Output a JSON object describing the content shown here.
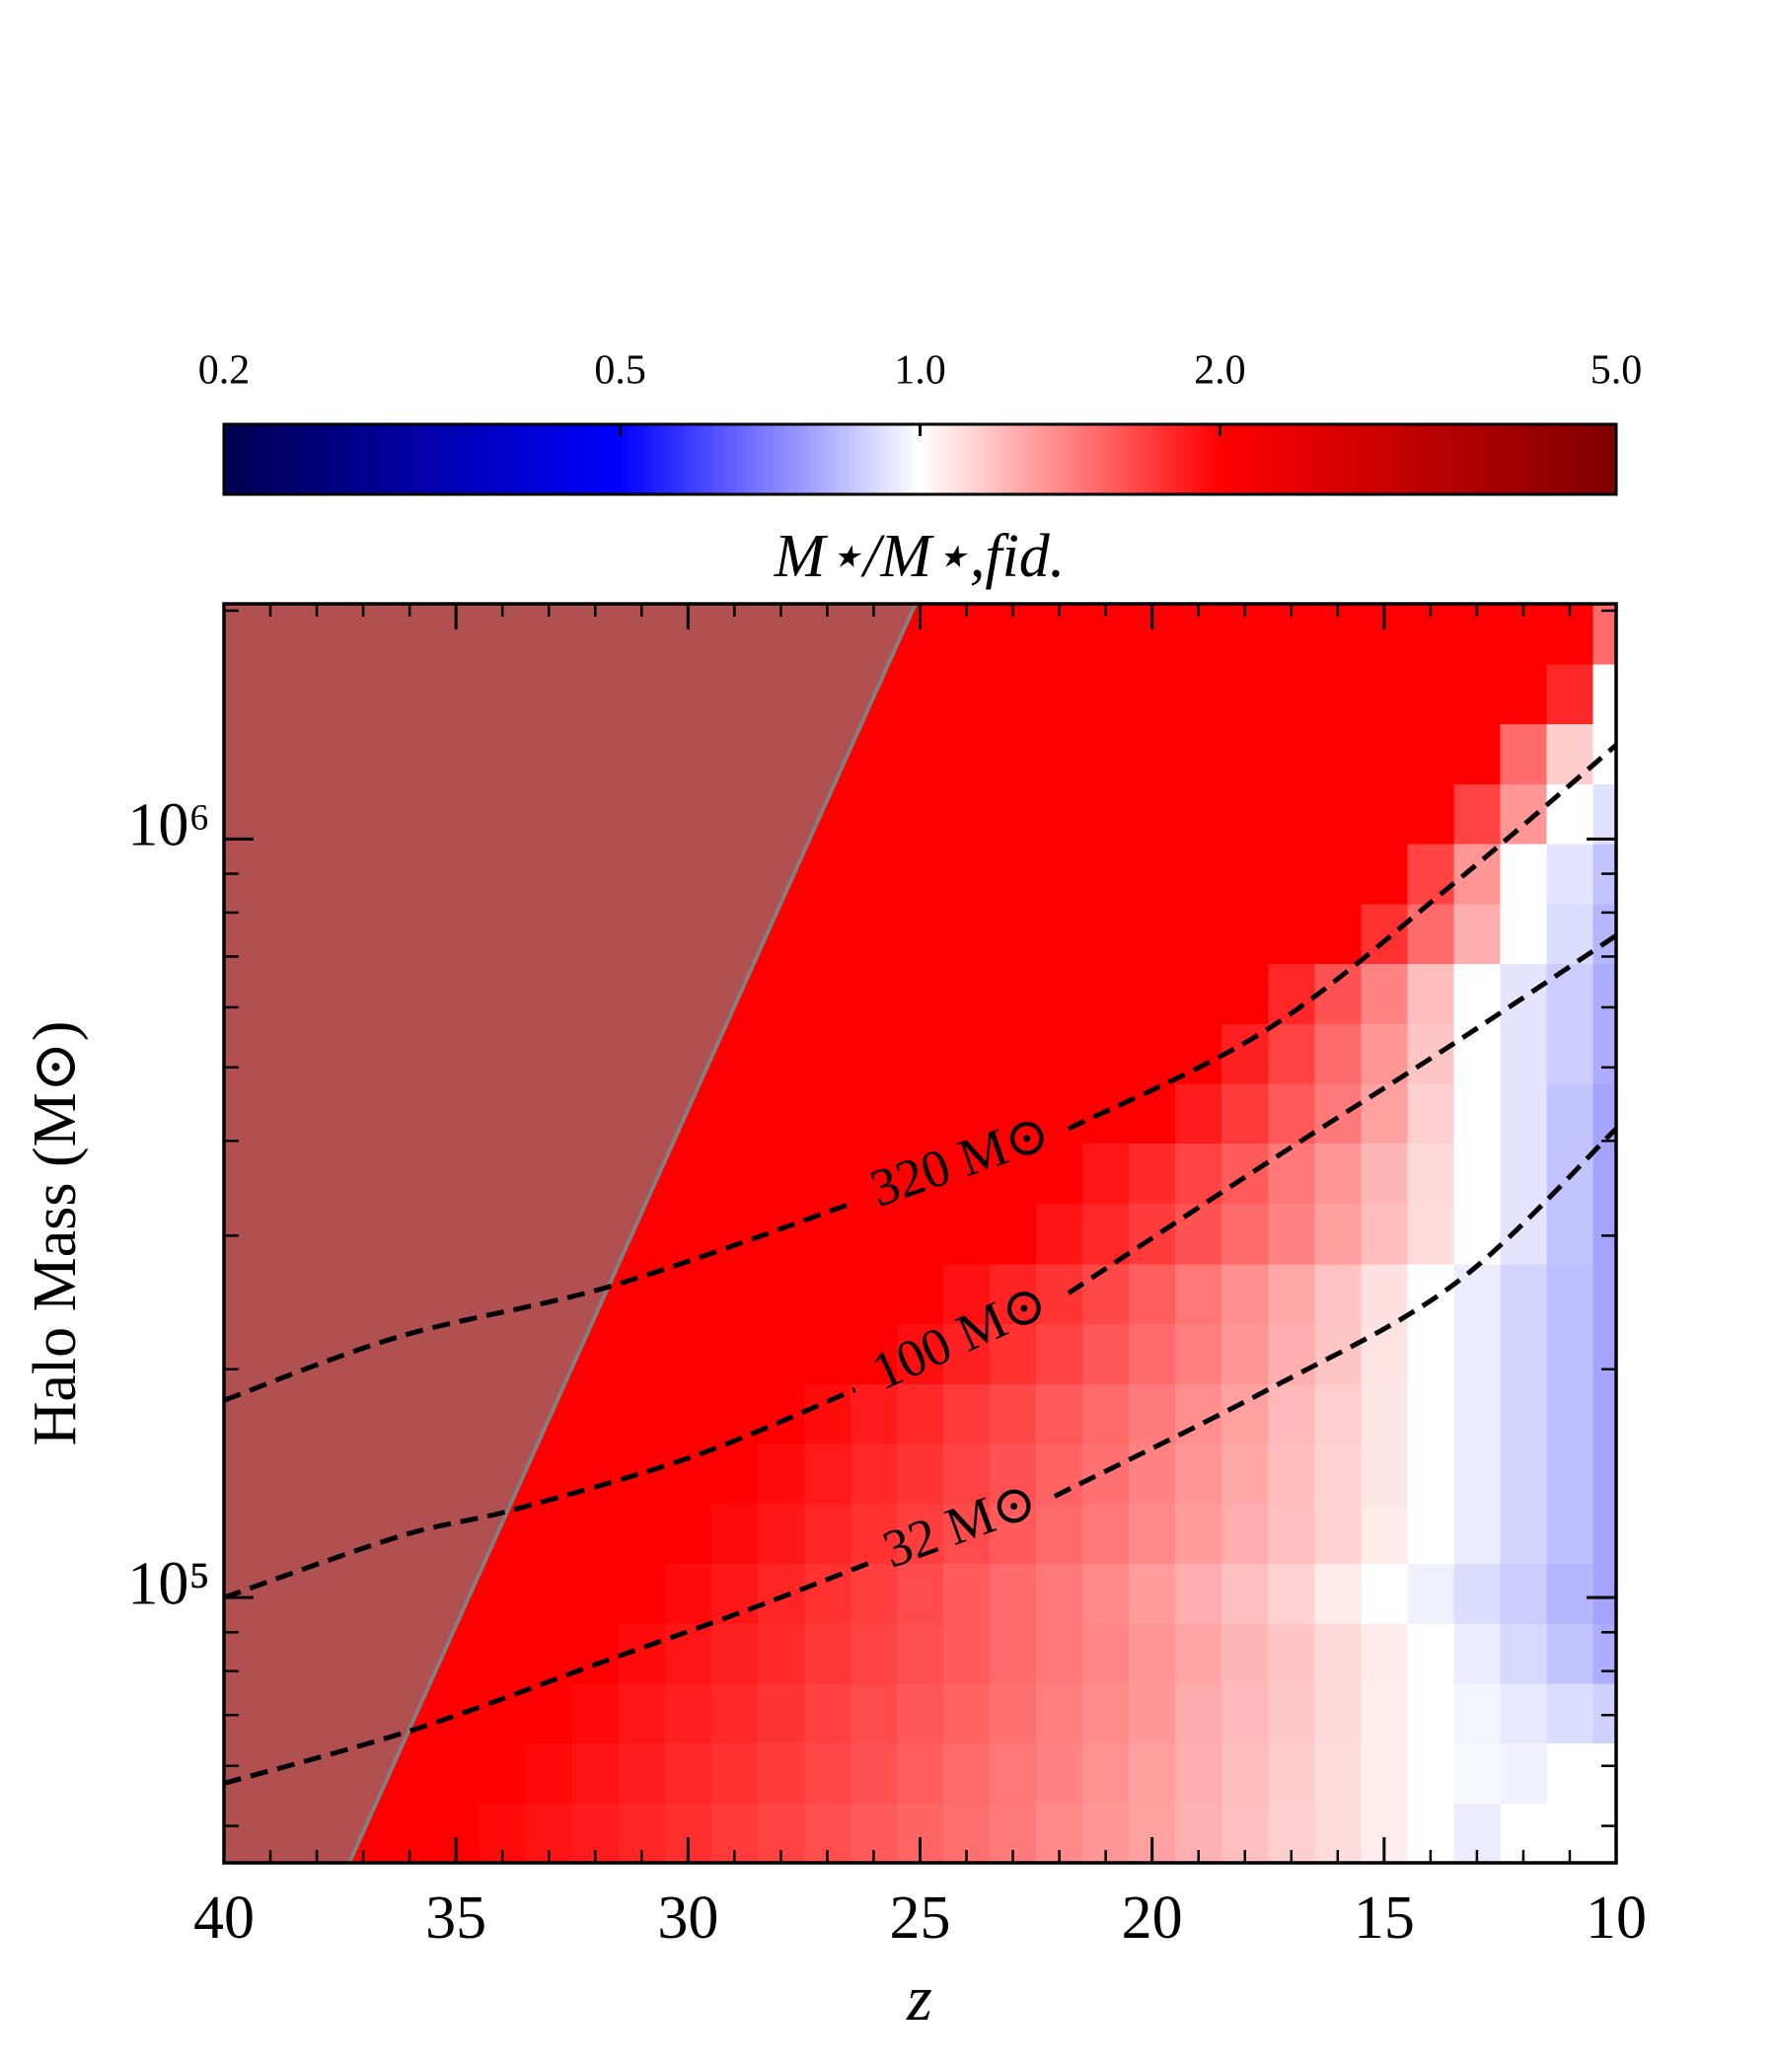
{
  "chart_data": {
    "type": "heatmap",
    "xlabel": "z",
    "ylabel": "Halo Mass (M⊙)",
    "xlim": [
      40,
      10
    ],
    "xticks": [
      40,
      35,
      30,
      25,
      20,
      15,
      10
    ],
    "xticks_minor": [
      39,
      38,
      37,
      36,
      34,
      33,
      32,
      31,
      29,
      28,
      27,
      26,
      24,
      23,
      22,
      21,
      19,
      18,
      17,
      16,
      14,
      13,
      12,
      11
    ],
    "ylim": [
      44700,
      2042000
    ],
    "ylog": true,
    "yticks": [
      {
        "value": 100000,
        "label": "10⁵"
      },
      {
        "value": 1000000,
        "label": "10⁶"
      }
    ],
    "yticks_minor": [
      50000,
      60000,
      70000,
      80000,
      90000,
      200000,
      300000,
      400000,
      500000,
      600000,
      700000,
      800000,
      900000,
      2000000
    ],
    "colorbar": {
      "label": "M⋆/M⋆,fid.",
      "log": true,
      "clim": [
        0.2,
        5
      ],
      "ticks": [
        0.2,
        0.5,
        {
          "value": 1,
          "label": "1.0"
        },
        {
          "value": 2,
          "label": "2.0"
        },
        {
          "value": 5,
          "label": "5.0"
        }
      ],
      "colors": [
        "#000050",
        "#0000ff",
        "#ffffff",
        "#ff0000",
        "#7f0000"
      ]
    },
    "x_edges": [
      40,
      39.5,
      38.5,
      37.5,
      36.5,
      35.5,
      34.5,
      33.5,
      32.5,
      31.5,
      30.5,
      29.5,
      28.5,
      27.5,
      26.5,
      25.5,
      24.5,
      23.5,
      22.5,
      21.5,
      20.5,
      19.5,
      18.5,
      17.5,
      16.5,
      15.5,
      14.5,
      13.5,
      12.5,
      11.5,
      10.5,
      10
    ],
    "y_edges": [
      44700,
      53600,
      64300,
      77100,
      92500,
      110900,
      133000,
      159600,
      191400,
      229600,
      275400,
      331100,
      397200,
      476400,
      571500,
      685500,
      822200,
      986300,
      1183000,
      1419000,
      1702000,
      2042000
    ],
    "z": [
      [
        2,
        2,
        2,
        2,
        2,
        2,
        1.95,
        1.9,
        1.86,
        1.81,
        1.76,
        1.71,
        1.67,
        1.62,
        1.57,
        1.52,
        1.48,
        1.43,
        1.38,
        1.33,
        1.29,
        1.24,
        1.19,
        1.14,
        1.1,
        1.05,
        1.0,
        0.95,
        null,
        null,
        null
      ],
      [
        2,
        2,
        2,
        2,
        2,
        2,
        2,
        1.95,
        1.9,
        1.85,
        1.8,
        1.75,
        1.7,
        1.65,
        1.6,
        1.55,
        1.5,
        1.45,
        1.4,
        1.35,
        1.3,
        1.25,
        1.2,
        1.15,
        1.1,
        1.05,
        1.0,
        0.98,
        0.96,
        null,
        null
      ],
      [
        2,
        2,
        2,
        2,
        2,
        2,
        2,
        2,
        1.95,
        1.89,
        1.84,
        1.79,
        1.74,
        1.68,
        1.63,
        1.58,
        1.53,
        1.47,
        1.42,
        1.37,
        1.32,
        1.26,
        1.21,
        1.16,
        1.11,
        1.05,
        1.0,
        0.97,
        0.94,
        0.91,
        0.88
      ],
      [
        2,
        2,
        2,
        2,
        2,
        2,
        2,
        2,
        2,
        1.94,
        1.89,
        1.83,
        1.78,
        1.72,
        1.67,
        1.61,
        1.56,
        1.5,
        1.44,
        1.39,
        1.33,
        1.28,
        1.22,
        1.17,
        1.11,
        1.06,
        1.0,
        0.95,
        0.9,
        0.85,
        0.8
      ],
      [
        2,
        2,
        2,
        2,
        2,
        2,
        2,
        2,
        2,
        2,
        1.94,
        1.88,
        1.81,
        1.75,
        1.69,
        1.63,
        1.56,
        1.5,
        1.44,
        1.38,
        1.31,
        1.25,
        1.19,
        1.13,
        1.06,
        1.0,
        0.96,
        0.91,
        0.87,
        0.82,
        0.78
      ],
      [
        2,
        2,
        2,
        2,
        2,
        2,
        2,
        2,
        2,
        2,
        2,
        1.94,
        1.88,
        1.81,
        1.75,
        1.69,
        1.63,
        1.56,
        1.5,
        1.44,
        1.38,
        1.31,
        1.25,
        1.19,
        1.13,
        1.06,
        1.0,
        0.95,
        0.89,
        0.84,
        0.78
      ],
      [
        2,
        2,
        2,
        2,
        2,
        2,
        2,
        2,
        2,
        2,
        2,
        2,
        1.93,
        1.87,
        1.8,
        1.73,
        1.67,
        1.6,
        1.53,
        1.47,
        1.4,
        1.33,
        1.27,
        1.2,
        1.13,
        1.07,
        1.0,
        0.95,
        0.89,
        0.84,
        0.78
      ],
      [
        2,
        2,
        2,
        2,
        2,
        2,
        2,
        2,
        2,
        2,
        2,
        2,
        2,
        1.93,
        1.86,
        1.79,
        1.71,
        1.64,
        1.57,
        1.5,
        1.43,
        1.36,
        1.29,
        1.21,
        1.14,
        1.07,
        1.0,
        0.95,
        0.89,
        0.84,
        0.78
      ],
      [
        2,
        2,
        2,
        2,
        2,
        2,
        2,
        2,
        2,
        2,
        2,
        2,
        2,
        2,
        2,
        1.92,
        1.83,
        1.75,
        1.67,
        1.58,
        1.5,
        1.42,
        1.33,
        1.25,
        1.17,
        1.08,
        1.0,
        0.95,
        0.89,
        0.84,
        0.78
      ],
      [
        2,
        2,
        2,
        2,
        2,
        2,
        2,
        2,
        2,
        2,
        2,
        2,
        2,
        2,
        2,
        2,
        1.91,
        1.82,
        1.73,
        1.64,
        1.55,
        1.45,
        1.36,
        1.27,
        1.18,
        1.09,
        1.0,
        0.95,
        0.89,
        0.84,
        0.78
      ],
      [
        2,
        2,
        2,
        2,
        2,
        2,
        2,
        2,
        2,
        2,
        2,
        2,
        2,
        2,
        2,
        2,
        2,
        2,
        1.9,
        1.8,
        1.7,
        1.6,
        1.5,
        1.4,
        1.3,
        1.2,
        1.1,
        1.0,
        0.93,
        0.85,
        0.78
      ],
      [
        2,
        2,
        2,
        2,
        2,
        2,
        2,
        2,
        2,
        2,
        2,
        2,
        2,
        2,
        2,
        2,
        2,
        2,
        2,
        1.89,
        1.78,
        1.67,
        1.56,
        1.44,
        1.33,
        1.22,
        1.11,
        1.0,
        0.93,
        0.85,
        0.78
      ],
      [
        2,
        2,
        2,
        2,
        2,
        2,
        2,
        2,
        2,
        2,
        2,
        2,
        2,
        2,
        2,
        2,
        2,
        2,
        2,
        2,
        2,
        1.86,
        1.71,
        1.57,
        1.43,
        1.29,
        1.14,
        1.0,
        0.93,
        0.85,
        0.78
      ],
      [
        2,
        2,
        2,
        2,
        2,
        2,
        2,
        2,
        2,
        2,
        2,
        2,
        2,
        2,
        2,
        2,
        2,
        2,
        2,
        2,
        2,
        2,
        1.83,
        1.67,
        1.5,
        1.33,
        1.17,
        1.0,
        0.93,
        0.87,
        0.8
      ],
      [
        2,
        2,
        2,
        2,
        2,
        2,
        2,
        2,
        2,
        2,
        2,
        2,
        2,
        2,
        2,
        2,
        2,
        2,
        2,
        2,
        2,
        2,
        2,
        1.8,
        1.6,
        1.4,
        1.2,
        1.0,
        0.93,
        0.87,
        0.8
      ],
      [
        2,
        2,
        2,
        2,
        2,
        2,
        2,
        2,
        2,
        2,
        2,
        2,
        2,
        2,
        2,
        2,
        2,
        2,
        2,
        2,
        2,
        2,
        2,
        2,
        2,
        1.75,
        1.5,
        1.25,
        1.0,
        0.91,
        0.82
      ],
      [
        2,
        2,
        2,
        2,
        2,
        2,
        2,
        2,
        2,
        2,
        2,
        2,
        2,
        2,
        2,
        2,
        2,
        2,
        2,
        2,
        2,
        2,
        2,
        2,
        2,
        2,
        1.67,
        1.33,
        1.0,
        0.93,
        0.85
      ],
      [
        2,
        2,
        2,
        2,
        2,
        2,
        2,
        2,
        2,
        2,
        2,
        2,
        2,
        2,
        2,
        2,
        2,
        2,
        2,
        2,
        2,
        2,
        2,
        2,
        2,
        2,
        2,
        1.67,
        1.33,
        1.0,
        0.92
      ],
      [
        2,
        2,
        2,
        2,
        2,
        2,
        2,
        2,
        2,
        2,
        2,
        2,
        2,
        2,
        2,
        2,
        2,
        2,
        2,
        2,
        2,
        2,
        2,
        2,
        2,
        2,
        2,
        2,
        1.5,
        1.15,
        1.0
      ],
      [
        2,
        2,
        2,
        2,
        2,
        2,
        2,
        2,
        2,
        2,
        2,
        2,
        2,
        2,
        2,
        2,
        2,
        2,
        2,
        2,
        2,
        2,
        2,
        2,
        2,
        2,
        2,
        2,
        2,
        1.8,
        1.0
      ],
      [
        2,
        2,
        2,
        2,
        2,
        2,
        2,
        2,
        2,
        2,
        2,
        2,
        2,
        2,
        2,
        2,
        2,
        2,
        2,
        2,
        2,
        2,
        2,
        2,
        2,
        2,
        2,
        2,
        2,
        2,
        1.5
      ]
    ],
    "shaded_region": {
      "x": [
        37.3,
        25.1
      ],
      "color": "#b05050",
      "edge_color": "#808080"
    },
    "contours": [
      {
        "name": "320 M⊙",
        "color": "#000000",
        "x": [
          40,
          36.2,
          31.6,
          26.4,
          null,
          21.8,
          17.5,
          13.45,
          10
        ],
        "y": [
          182000,
          221000,
          258000,
          332000,
          null,
          415000,
          562000,
          879000,
          1330000
        ]
      },
      {
        "name": "100 M⊙",
        "color": "#000000",
        "x": [
          40,
          36.2,
          33.75,
          29.86,
          26.4,
          null,
          21.8,
          17.5,
          13.45,
          10
        ],
        "y": [
          100000,
          120500,
          130600,
          153700,
          188000,
          null,
          252000,
          375000,
          540000,
          746000
        ]
      },
      {
        "name": "32 M⊙",
        "color": "#000000",
        "x": [
          40,
          35.9,
          31.9,
          28.7,
          26.1,
          null,
          22.1,
          17.5,
          13.45,
          10
        ],
        "y": [
          56900,
          67000,
          82000,
          96400,
          111000,
          null,
          136000,
          188000,
          260000,
          415000
        ]
      }
    ]
  }
}
